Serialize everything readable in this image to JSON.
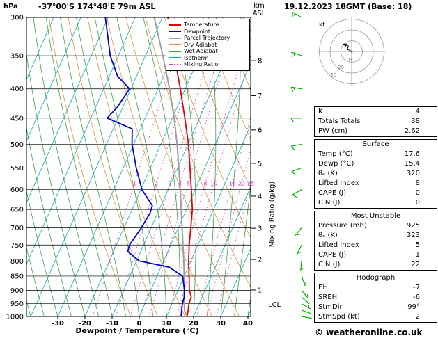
{
  "header": {
    "pressure_unit": "hPa",
    "station_title": "-37°00'S 174°48'E 79m ASL",
    "run_datetime": "19.12.2023 18GMT (Base: 18)"
  },
  "axes": {
    "pressure_levels": [
      300,
      350,
      400,
      450,
      500,
      550,
      600,
      650,
      700,
      750,
      800,
      850,
      900,
      950,
      1000
    ],
    "temp_ticks": [
      -30,
      -20,
      -10,
      0,
      10,
      20,
      30,
      40
    ],
    "temp_axis_label": "Dewpoint / Temperature (°C)",
    "km_axis_label": [
      "km",
      "ASL"
    ],
    "km_ticks": [
      1,
      2,
      3,
      4,
      5,
      6,
      7,
      8
    ],
    "mixing_ratio_axis_label": "Mixing Ratio (g/kg)",
    "lcl_label": "LCL"
  },
  "legend": [
    {
      "label": "Temperature",
      "color": "#e00000",
      "style": "solid"
    },
    {
      "label": "Dewpoint",
      "color": "#0000cd",
      "style": "solid"
    },
    {
      "label": "Parcel Trajectory",
      "color": "#9e9e9e",
      "style": "solid"
    },
    {
      "label": "Dry Adiabat",
      "color": "#e09440",
      "style": "solid"
    },
    {
      "label": "Wet Adiabat",
      "color": "#3fa045",
      "style": "solid"
    },
    {
      "label": "Isotherm",
      "color": "#00b2b2",
      "style": "solid"
    },
    {
      "label": "Mixing Ratio",
      "color": "#d633d6",
      "style": "dotted"
    }
  ],
  "chart_data": {
    "type": "skewt_log_p",
    "pressure_range_hPa": [
      300,
      1000
    ],
    "temp_axis_range_C": [
      -30,
      40
    ],
    "isotherm_step_C": 10,
    "dry_adiabats_theta_K": [
      270,
      280,
      290,
      300,
      310,
      320,
      330,
      340,
      350,
      360,
      370,
      380,
      390,
      400,
      410,
      420,
      430,
      440,
      450
    ],
    "wet_adiabats_surface_T_C": [
      -40,
      -35,
      -30,
      -25,
      -20,
      -15,
      -10,
      -5,
      0,
      5,
      10,
      15,
      20,
      25,
      30,
      35,
      40
    ],
    "mixing_ratio_g_per_kg": [
      1,
      2,
      3,
      4,
      5,
      8,
      10,
      16,
      20,
      25
    ],
    "colors": {
      "temperature": "#e00000",
      "dewpoint": "#0000cd",
      "parcel": "#9e9e9e",
      "dry_adiabat": "#e09440",
      "wet_adiabat": "#3fa045",
      "isotherm": "#00b2b2",
      "mixing_ratio": "#d633d6",
      "isobar": "#000000",
      "wind_barb": "#00b400",
      "frame": "#000000",
      "hodograph_grid": "#999999"
    },
    "temperature_profile_p_T": [
      [
        1000,
        17.6
      ],
      [
        975,
        17.0
      ],
      [
        950,
        16.2
      ],
      [
        925,
        16.0
      ],
      [
        900,
        14.2
      ],
      [
        850,
        11.8
      ],
      [
        800,
        9.2
      ],
      [
        750,
        6.8
      ],
      [
        700,
        4.6
      ],
      [
        650,
        2.2
      ],
      [
        600,
        -1.4
      ],
      [
        550,
        -5.4
      ],
      [
        500,
        -9.8
      ],
      [
        450,
        -15.4
      ],
      [
        400,
        -21.8
      ],
      [
        350,
        -29.4
      ],
      [
        300,
        -38.0
      ]
    ],
    "dewpoint_profile_p_T": [
      [
        1000,
        15.4
      ],
      [
        975,
        14.6
      ],
      [
        950,
        13.8
      ],
      [
        925,
        13.4
      ],
      [
        900,
        12.4
      ],
      [
        850,
        9.4
      ],
      [
        820,
        3.0
      ],
      [
        800,
        -9.0
      ],
      [
        770,
        -14.8
      ],
      [
        750,
        -15.2
      ],
      [
        700,
        -13.6
      ],
      [
        660,
        -12.8
      ],
      [
        640,
        -13.2
      ],
      [
        600,
        -19.6
      ],
      [
        550,
        -25.2
      ],
      [
        500,
        -30.6
      ],
      [
        470,
        -33.0
      ],
      [
        450,
        -44.0
      ],
      [
        430,
        -42.0
      ],
      [
        400,
        -40.5
      ],
      [
        380,
        -47.0
      ],
      [
        350,
        -53.0
      ],
      [
        300,
        -61.0
      ]
    ],
    "parcel_profile_p_T": [
      [
        1000,
        17.6
      ],
      [
        975,
        15.6
      ],
      [
        950,
        14.5
      ],
      [
        900,
        12.3
      ],
      [
        850,
        10.0
      ],
      [
        800,
        7.4
      ],
      [
        750,
        4.5
      ],
      [
        700,
        1.4
      ],
      [
        650,
        -1.9
      ],
      [
        600,
        -5.5
      ],
      [
        550,
        -9.5
      ],
      [
        500,
        -14.0
      ],
      [
        450,
        -19.3
      ],
      [
        400,
        -25.8
      ],
      [
        350,
        -33.6
      ],
      [
        300,
        -43.0
      ]
    ],
    "lcl_pressure_hPa": 955,
    "wind_barbs": [
      {
        "p": 1000,
        "dir": 100,
        "spd": 2
      },
      {
        "p": 975,
        "dir": 110,
        "spd": 2
      },
      {
        "p": 950,
        "dir": 120,
        "spd": 5
      },
      {
        "p": 925,
        "dir": 130,
        "spd": 5
      },
      {
        "p": 900,
        "dir": 140,
        "spd": 5
      },
      {
        "p": 850,
        "dir": 160,
        "spd": 5
      },
      {
        "p": 800,
        "dir": 185,
        "spd": 5
      },
      {
        "p": 750,
        "dir": 205,
        "spd": 5
      },
      {
        "p": 700,
        "dir": 220,
        "spd": 5
      },
      {
        "p": 600,
        "dir": 240,
        "spd": 10
      },
      {
        "p": 550,
        "dir": 250,
        "spd": 10
      },
      {
        "p": 500,
        "dir": 260,
        "spd": 10
      },
      {
        "p": 450,
        "dir": 270,
        "spd": 10
      },
      {
        "p": 400,
        "dir": 280,
        "spd": 15
      },
      {
        "p": 350,
        "dir": 290,
        "spd": 15
      },
      {
        "p": 300,
        "dir": 300,
        "spd": 15
      }
    ],
    "hodograph": {
      "unit_label": "kt",
      "rings_kt": [
        10,
        20,
        30
      ],
      "ring_labels": [
        "10",
        "20",
        "30"
      ],
      "trace_uv_kt": [
        [
          0,
          0
        ],
        [
          -4,
          2
        ],
        [
          -3,
          5
        ],
        [
          -8,
          7
        ]
      ]
    }
  },
  "tables": [
    {
      "title": "",
      "rows": [
        [
          "K",
          "4"
        ],
        [
          "Totals Totals",
          "38"
        ],
        [
          "PW (cm)",
          "2.62"
        ]
      ]
    },
    {
      "title": "Surface",
      "rows": [
        [
          "Temp (°C)",
          "17.6"
        ],
        [
          "Dewp (°C)",
          "15.4"
        ],
        [
          "θₑ (K)",
          "320"
        ],
        [
          "Lifted Index",
          "8"
        ],
        [
          "CAPE (J)",
          "0"
        ],
        [
          "CIN (J)",
          "0"
        ]
      ]
    },
    {
      "title": "Most Unstable",
      "rows": [
        [
          "Pressure (mb)",
          "925"
        ],
        [
          "θₑ (K)",
          "323"
        ],
        [
          "Lifted Index",
          "5"
        ],
        [
          "CAPE (J)",
          "1"
        ],
        [
          "CIN (J)",
          "22"
        ]
      ]
    },
    {
      "title": "Hodograph",
      "rows": [
        [
          "EH",
          "-7"
        ],
        [
          "SREH",
          "-6"
        ],
        [
          "StmDir",
          "99°"
        ],
        [
          "StmSpd (kt)",
          "2"
        ]
      ]
    }
  ],
  "footer": {
    "copyright": "© weatheronline.co.uk"
  }
}
